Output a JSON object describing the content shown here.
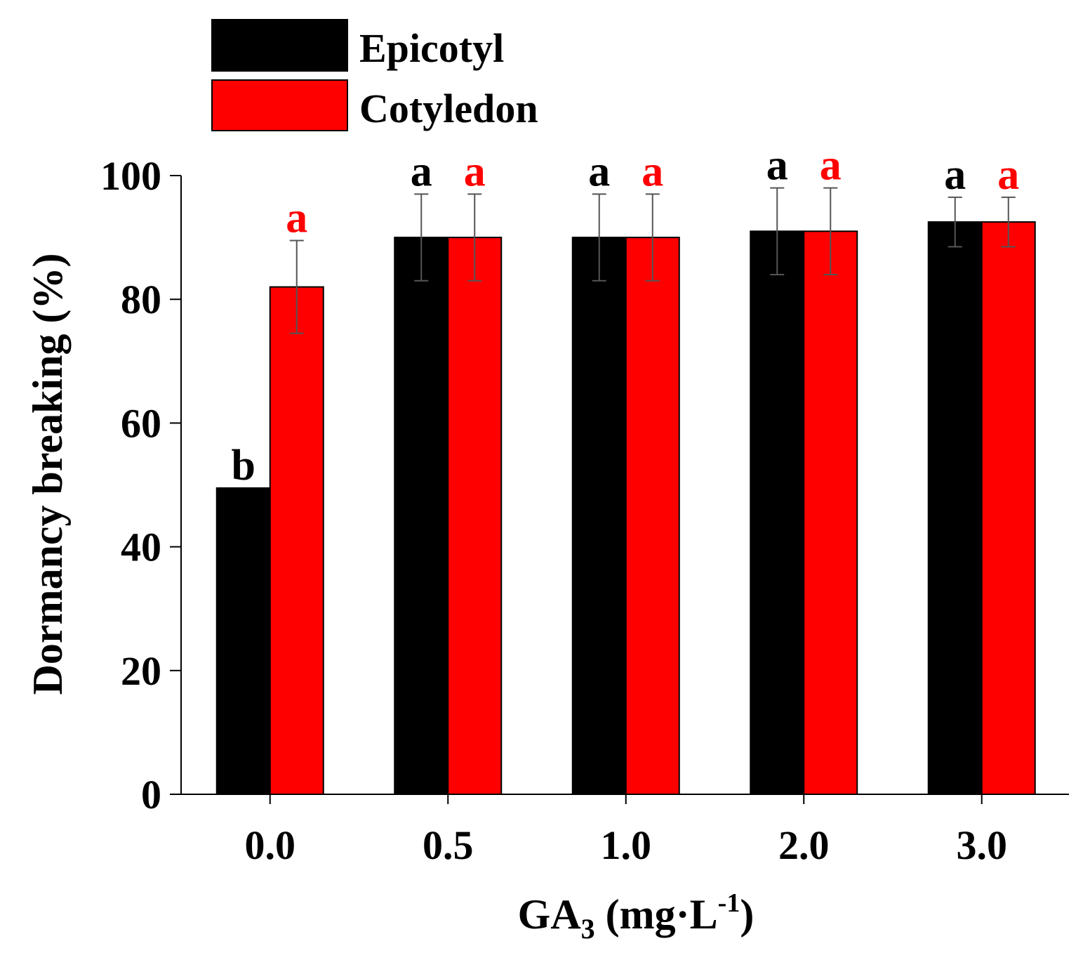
{
  "chart_data": {
    "type": "bar",
    "xlabel_main": "GA",
    "xlabel_sub": "3",
    "xlabel_units_pre": " (mg·L",
    "xlabel_units_sup": "-1",
    "xlabel_units_post": ")",
    "ylabel": "Dormancy breaking (%)",
    "ylim": [
      0,
      100
    ],
    "yticks": [
      0,
      20,
      40,
      60,
      80,
      100
    ],
    "categories": [
      "0.0",
      "0.5",
      "1.0",
      "2.0",
      "3.0"
    ],
    "legend_position": "top-left",
    "series": [
      {
        "name": "Epicotyl",
        "color": "#000000",
        "label_color": "#000000",
        "values": [
          49.5,
          90,
          90,
          91,
          92.5
        ],
        "errors": [
          0,
          7,
          7,
          7,
          4
        ],
        "letters": [
          "b",
          "a",
          "a",
          "a",
          "a"
        ]
      },
      {
        "name": "Cotyledon",
        "color": "#ff0000",
        "label_color": "#ff0000",
        "values": [
          82,
          90,
          90,
          91,
          92.5
        ],
        "errors": [
          7.5,
          7,
          7,
          7,
          4
        ],
        "letters": [
          "a",
          "a",
          "a",
          "a",
          "a"
        ]
      }
    ]
  }
}
